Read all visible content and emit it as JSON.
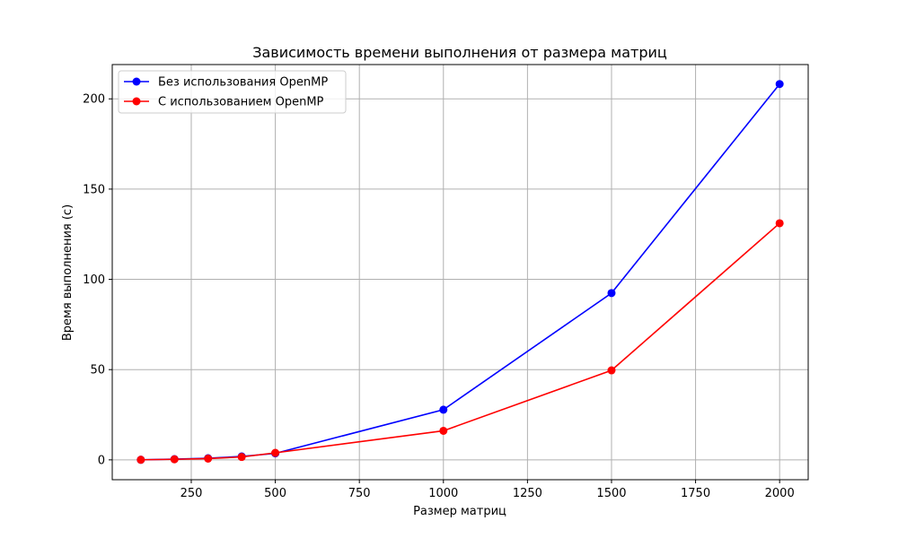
{
  "chart_data": {
    "type": "line",
    "title": "Зависимость времени выполнения от размера матриц",
    "xlabel": "Размер матриц",
    "ylabel": "Время выполнения (с)",
    "x": [
      100,
      200,
      300,
      400,
      500,
      1000,
      1500,
      2000
    ],
    "xlim": [
      15,
      2085
    ],
    "ylim": [
      -11,
      219
    ],
    "xticks": [
      250,
      500,
      750,
      1000,
      1250,
      1500,
      1750,
      2000
    ],
    "yticks": [
      0,
      50,
      100,
      150,
      200
    ],
    "grid": true,
    "legend_position": "top-left",
    "series": [
      {
        "name": "Без использования OpenMP",
        "color": "#0000ff",
        "values": [
          0.05,
          0.4,
          0.9,
          1.9,
          3.6,
          27.8,
          92.4,
          208.2
        ]
      },
      {
        "name": "С использованием OpenMP",
        "color": "#ff0000",
        "values": [
          0.05,
          0.3,
          0.7,
          1.6,
          3.9,
          16.1,
          49.6,
          131.1
        ]
      }
    ]
  }
}
